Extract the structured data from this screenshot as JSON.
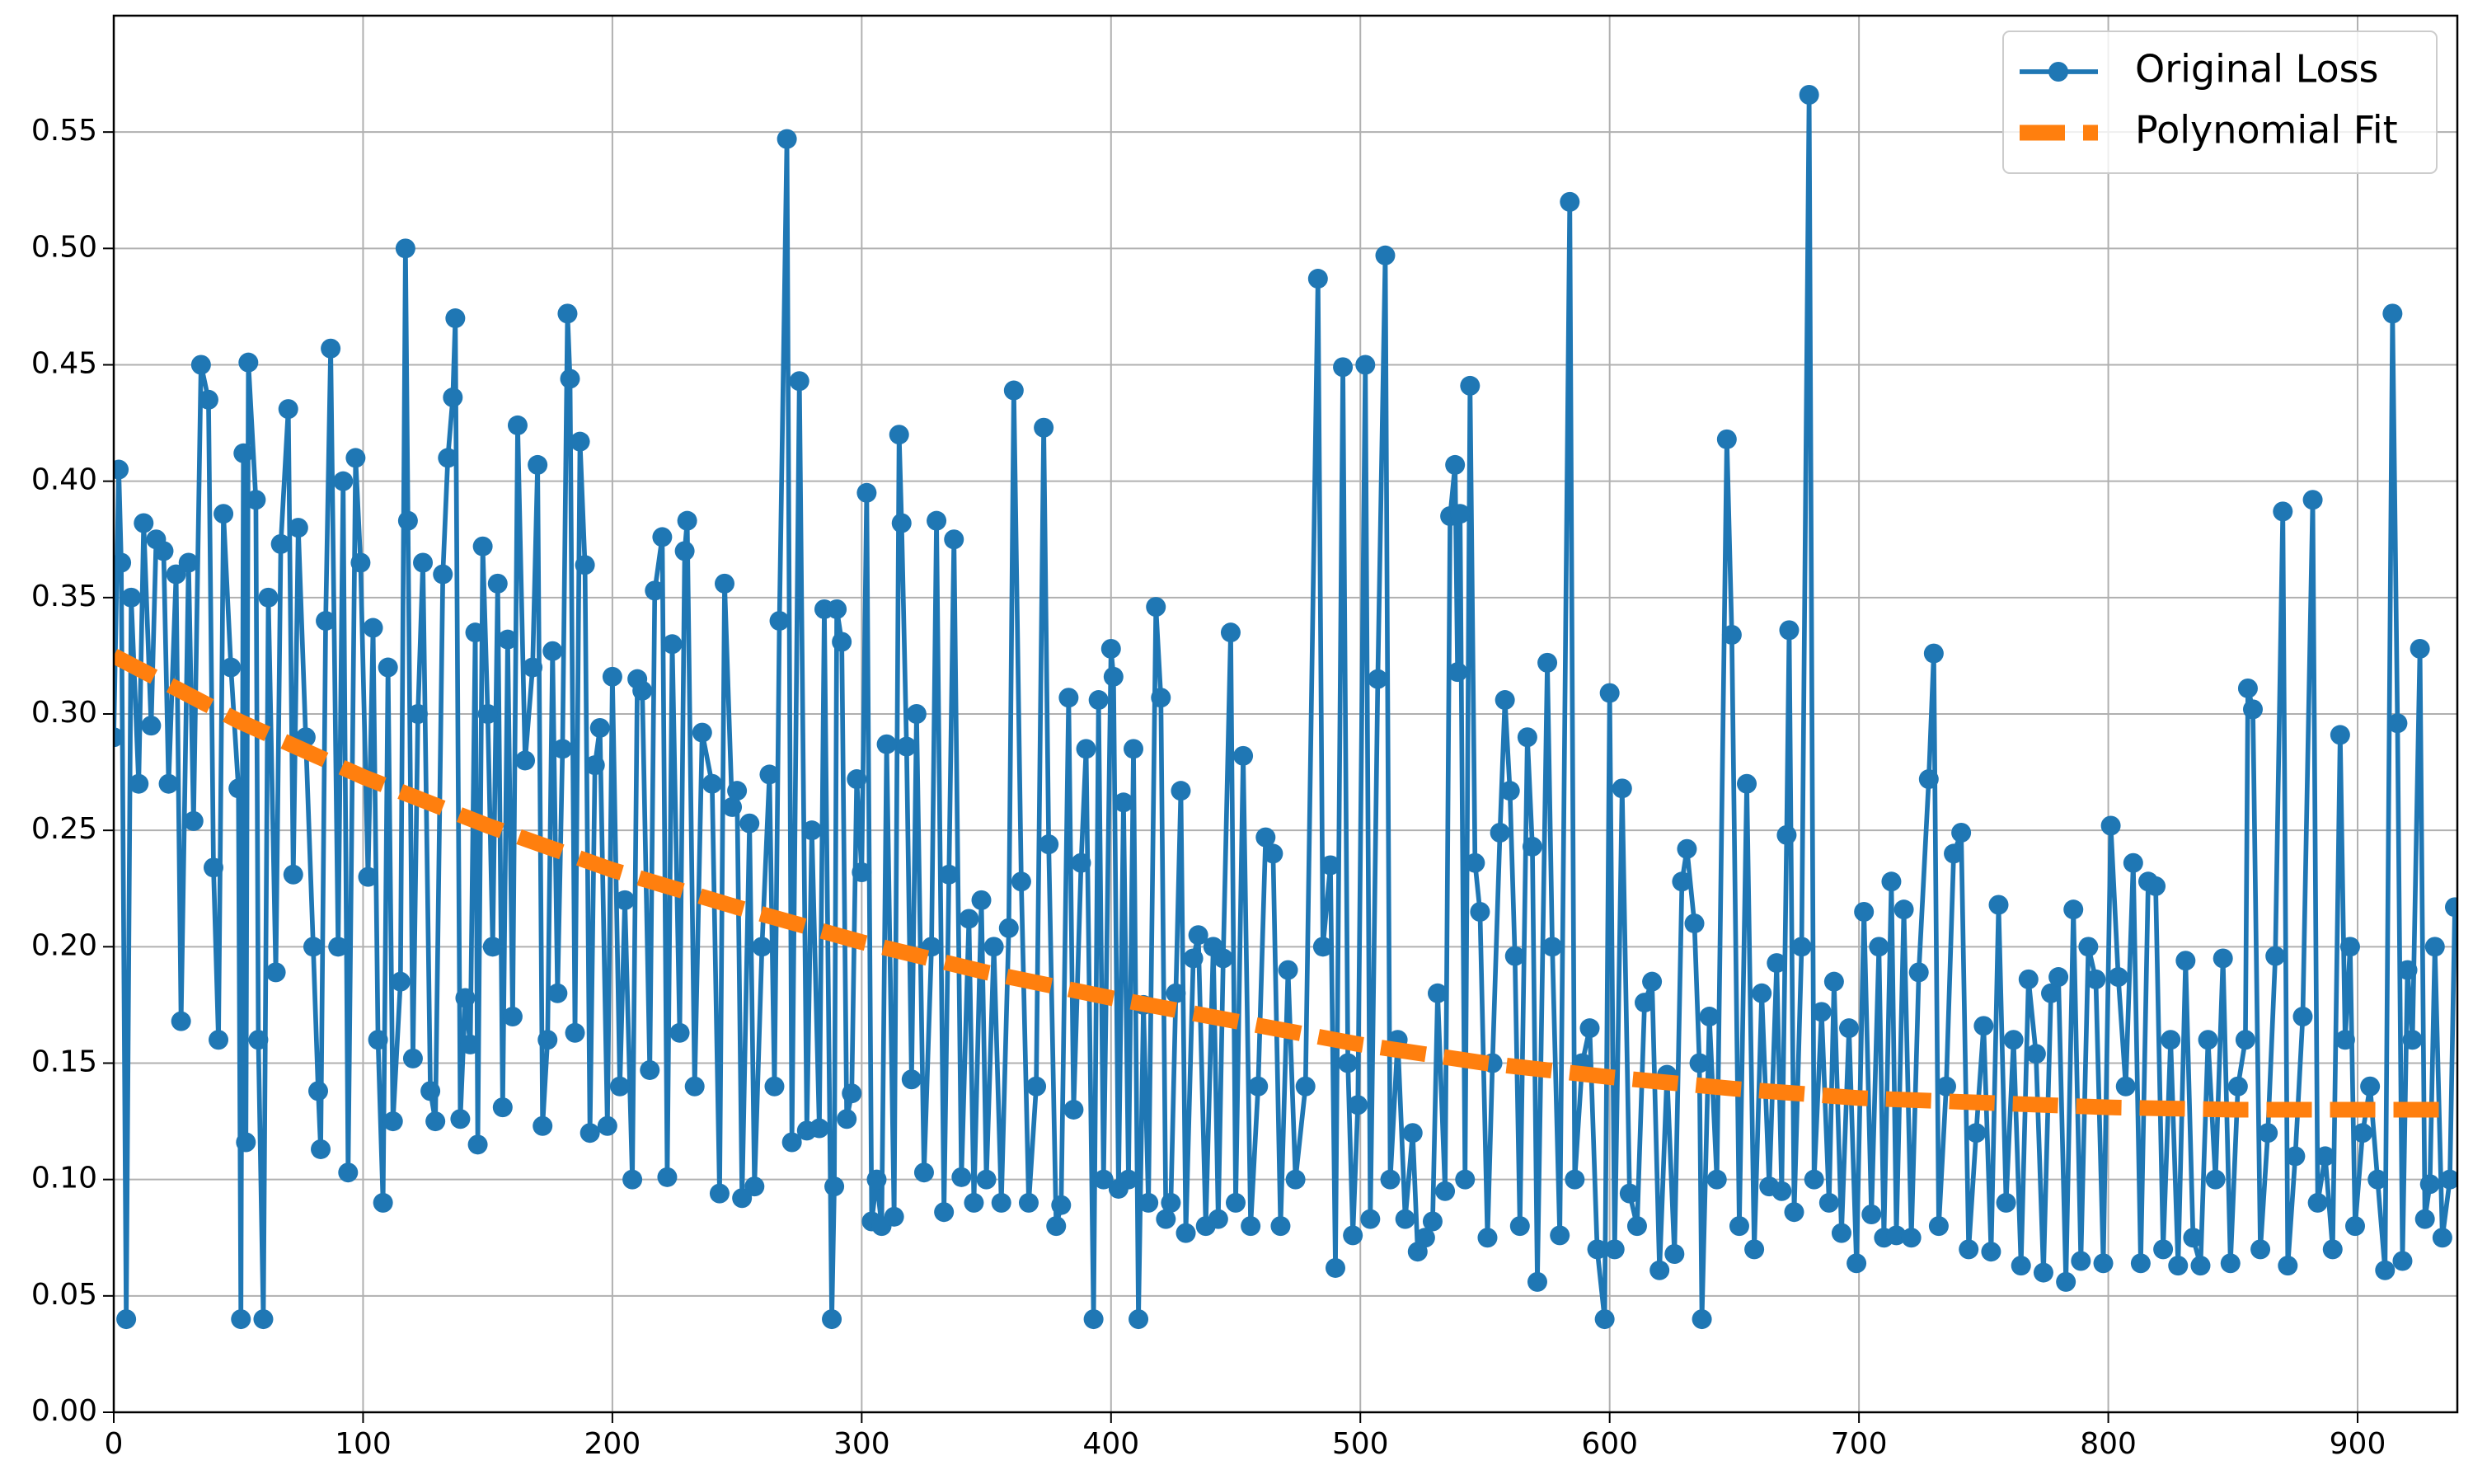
{
  "chart_data": {
    "type": "line",
    "series": [
      {
        "name": "Original Loss",
        "color": "#1f77b4",
        "marker": "o",
        "linestyle": "solid",
        "x": [
          0,
          2,
          3,
          5,
          7,
          10,
          12,
          15,
          17,
          20,
          22,
          25,
          27,
          30,
          32,
          35,
          38,
          40,
          42,
          44,
          47,
          50,
          51,
          52,
          53,
          54,
          57,
          58,
          60,
          62,
          65,
          67,
          70,
          72,
          74,
          77,
          80,
          82,
          83,
          85,
          87,
          90,
          92,
          94,
          97,
          99,
          102,
          104,
          106,
          108,
          110,
          112,
          115,
          117,
          118,
          120,
          122,
          124,
          127,
          129,
          132,
          134,
          136,
          137,
          139,
          141,
          143,
          145,
          146,
          148,
          150,
          152,
          154,
          156,
          158,
          160,
          162,
          165,
          168,
          170,
          172,
          174,
          176,
          178,
          180,
          182,
          183,
          185,
          187,
          189,
          191,
          193,
          195,
          198,
          200,
          203,
          205,
          208,
          210,
          212,
          215,
          217,
          220,
          222,
          224,
          227,
          229,
          230,
          233,
          236,
          240,
          243,
          245,
          248,
          250,
          252,
          255,
          257,
          260,
          263,
          265,
          267,
          270,
          272,
          275,
          278,
          280,
          283,
          285,
          288,
          289,
          290,
          292,
          294,
          296,
          298,
          300,
          302,
          304,
          306,
          308,
          310,
          313,
          315,
          316,
          318,
          320,
          322,
          325,
          328,
          330,
          333,
          335,
          337,
          340,
          343,
          345,
          348,
          350,
          353,
          356,
          359,
          361,
          364,
          367,
          370,
          373,
          375,
          378,
          380,
          383,
          385,
          388,
          390,
          393,
          395,
          397,
          400,
          401,
          403,
          405,
          407,
          409,
          411,
          413,
          415,
          418,
          420,
          422,
          424,
          426,
          428,
          430,
          433,
          435,
          438,
          441,
          443,
          445,
          448,
          450,
          453,
          456,
          459,
          462,
          465,
          468,
          471,
          474,
          478,
          483,
          485,
          488,
          490,
          493,
          495,
          497,
          499,
          502,
          504,
          507,
          510,
          512,
          515,
          518,
          521,
          523,
          526,
          529,
          531,
          534,
          536,
          538,
          539,
          540,
          542,
          544,
          546,
          548,
          551,
          553,
          556,
          558,
          560,
          562,
          564,
          567,
          569,
          571,
          575,
          577,
          580,
          584,
          586,
          589,
          592,
          595,
          598,
          600,
          602,
          605,
          608,
          611,
          614,
          617,
          620,
          623,
          626,
          629,
          631,
          634,
          636,
          637,
          640,
          643,
          647,
          649,
          652,
          655,
          658,
          661,
          664,
          667,
          669,
          671,
          672,
          674,
          677,
          680,
          682,
          685,
          688,
          690,
          693,
          696,
          699,
          702,
          705,
          708,
          710,
          713,
          715,
          718,
          721,
          724,
          728,
          730,
          732,
          735,
          738,
          741,
          744,
          747,
          750,
          753,
          756,
          759,
          762,
          765,
          768,
          771,
          774,
          777,
          780,
          783,
          786,
          789,
          792,
          795,
          798,
          801,
          804,
          807,
          810,
          813,
          816,
          819,
          822,
          825,
          828,
          831,
          834,
          837,
          840,
          843,
          846,
          849,
          852,
          855,
          856,
          858,
          861,
          864,
          867,
          870,
          872,
          875,
          878,
          882,
          884,
          887,
          890,
          893,
          895,
          897,
          899,
          902,
          905,
          908,
          911,
          914,
          916,
          918,
          920,
          922,
          925,
          927,
          929,
          931,
          934,
          937,
          939
        ],
        "values": [
          0.29,
          0.405,
          0.365,
          0.04,
          0.35,
          0.27,
          0.382,
          0.295,
          0.375,
          0.37,
          0.27,
          0.36,
          0.168,
          0.365,
          0.254,
          0.45,
          0.435,
          0.234,
          0.16,
          0.386,
          0.32,
          0.268,
          0.04,
          0.412,
          0.116,
          0.451,
          0.392,
          0.16,
          0.04,
          0.35,
          0.189,
          0.373,
          0.431,
          0.231,
          0.38,
          0.29,
          0.2,
          0.138,
          0.113,
          0.34,
          0.457,
          0.2,
          0.4,
          0.103,
          0.41,
          0.365,
          0.23,
          0.337,
          0.16,
          0.09,
          0.32,
          0.125,
          0.185,
          0.5,
          0.383,
          0.152,
          0.3,
          0.365,
          0.138,
          0.125,
          0.36,
          0.41,
          0.436,
          0.47,
          0.126,
          0.178,
          0.158,
          0.335,
          0.115,
          0.372,
          0.3,
          0.2,
          0.356,
          0.131,
          0.332,
          0.17,
          0.424,
          0.28,
          0.32,
          0.407,
          0.123,
          0.16,
          0.327,
          0.18,
          0.285,
          0.472,
          0.444,
          0.163,
          0.417,
          0.364,
          0.12,
          0.278,
          0.294,
          0.123,
          0.316,
          0.14,
          0.22,
          0.1,
          0.315,
          0.31,
          0.147,
          0.353,
          0.376,
          0.101,
          0.33,
          0.163,
          0.37,
          0.383,
          0.14,
          0.292,
          0.27,
          0.094,
          0.356,
          0.26,
          0.267,
          0.092,
          0.253,
          0.097,
          0.2,
          0.274,
          0.14,
          0.34,
          0.547,
          0.116,
          0.443,
          0.121,
          0.25,
          0.122,
          0.345,
          0.04,
          0.097,
          0.345,
          0.331,
          0.126,
          0.137,
          0.272,
          0.232,
          0.395,
          0.082,
          0.1,
          0.08,
          0.287,
          0.084,
          0.42,
          0.382,
          0.286,
          0.143,
          0.3,
          0.103,
          0.2,
          0.383,
          0.086,
          0.231,
          0.375,
          0.101,
          0.212,
          0.09,
          0.22,
          0.1,
          0.2,
          0.09,
          0.208,
          0.439,
          0.228,
          0.09,
          0.14,
          0.423,
          0.244,
          0.08,
          0.089,
          0.307,
          0.13,
          0.236,
          0.285,
          0.04,
          0.306,
          0.1,
          0.328,
          0.316,
          0.096,
          0.262,
          0.1,
          0.285,
          0.04,
          0.175,
          0.09,
          0.346,
          0.307,
          0.083,
          0.09,
          0.18,
          0.267,
          0.077,
          0.195,
          0.205,
          0.08,
          0.2,
          0.083,
          0.195,
          0.335,
          0.09,
          0.282,
          0.08,
          0.14,
          0.247,
          0.24,
          0.08,
          0.19,
          0.1,
          0.14,
          0.487,
          0.2,
          0.235,
          0.062,
          0.449,
          0.15,
          0.076,
          0.132,
          0.45,
          0.083,
          0.315,
          0.497,
          0.1,
          0.16,
          0.083,
          0.12,
          0.069,
          0.075,
          0.082,
          0.18,
          0.095,
          0.385,
          0.407,
          0.318,
          0.386,
          0.1,
          0.441,
          0.236,
          0.215,
          0.075,
          0.15,
          0.249,
          0.306,
          0.267,
          0.196,
          0.08,
          0.29,
          0.243,
          0.056,
          0.322,
          0.2,
          0.076,
          0.52,
          0.1,
          0.15,
          0.165,
          0.07,
          0.04,
          0.309,
          0.07,
          0.268,
          0.094,
          0.08,
          0.176,
          0.185,
          0.061,
          0.145,
          0.068,
          0.228,
          0.242,
          0.21,
          0.15,
          0.04,
          0.17,
          0.1,
          0.418,
          0.334,
          0.08,
          0.27,
          0.07,
          0.18,
          0.097,
          0.193,
          0.095,
          0.248,
          0.336,
          0.086,
          0.2,
          0.566,
          0.1,
          0.172,
          0.09,
          0.185,
          0.077,
          0.165,
          0.064,
          0.215,
          0.085,
          0.2,
          0.075,
          0.228,
          0.076,
          0.216,
          0.075,
          0.189,
          0.272,
          0.326,
          0.08,
          0.14,
          0.24,
          0.249,
          0.07,
          0.12,
          0.166,
          0.069,
          0.218,
          0.09,
          0.16,
          0.063,
          0.186,
          0.154,
          0.06,
          0.18,
          0.187,
          0.056,
          0.216,
          0.065,
          0.2,
          0.186,
          0.064,
          0.252,
          0.187,
          0.14,
          0.236,
          0.064,
          0.228,
          0.226,
          0.07,
          0.16,
          0.063,
          0.194,
          0.075,
          0.063,
          0.16,
          0.1,
          0.195,
          0.064,
          0.14,
          0.16,
          0.311,
          0.302,
          0.07,
          0.12,
          0.196,
          0.387,
          0.063,
          0.11,
          0.17,
          0.392,
          0.09,
          0.11,
          0.07,
          0.291,
          0.16,
          0.2,
          0.08,
          0.12,
          0.14,
          0.1,
          0.061,
          0.472,
          0.296,
          0.065,
          0.19,
          0.16,
          0.328,
          0.083,
          0.098,
          0.2,
          0.075,
          0.1,
          0.217
        ]
      },
      {
        "name": "Polynomial Fit",
        "color": "#ff7f0e",
        "linestyle": "dashed",
        "x": [
          0,
          50,
          100,
          150,
          200,
          250,
          300,
          350,
          400,
          450,
          500,
          550,
          600,
          650,
          700,
          750,
          800,
          850,
          900,
          940
        ],
        "values": [
          0.325,
          0.297,
          0.273,
          0.252,
          0.233,
          0.217,
          0.202,
          0.189,
          0.178,
          0.168,
          0.158,
          0.15,
          0.144,
          0.139,
          0.135,
          0.133,
          0.131,
          0.13,
          0.13,
          0.13
        ]
      }
    ],
    "xlim": [
      0,
      940
    ],
    "xticks": [
      0,
      100,
      200,
      300,
      400,
      500,
      600,
      700,
      800,
      900
    ],
    "ylim": [
      0,
      0.6
    ],
    "yticks": [
      {
        "value": 0,
        "label": "0.00"
      },
      {
        "value": 0.05,
        "label": "0.05"
      },
      {
        "value": 0.1,
        "label": "0.10"
      },
      {
        "value": 0.15,
        "label": "0.15"
      },
      {
        "value": 0.2,
        "label": "0.20"
      },
      {
        "value": 0.25,
        "label": "0.25"
      },
      {
        "value": 0.3,
        "label": "0.30"
      },
      {
        "value": 0.35,
        "label": "0.35"
      },
      {
        "value": 0.4,
        "label": "0.40"
      },
      {
        "value": 0.45,
        "label": "0.45"
      },
      {
        "value": 0.5,
        "label": "0.50"
      },
      {
        "value": 0.55,
        "label": "0.55"
      }
    ],
    "grid": true,
    "legend": "upper right"
  }
}
